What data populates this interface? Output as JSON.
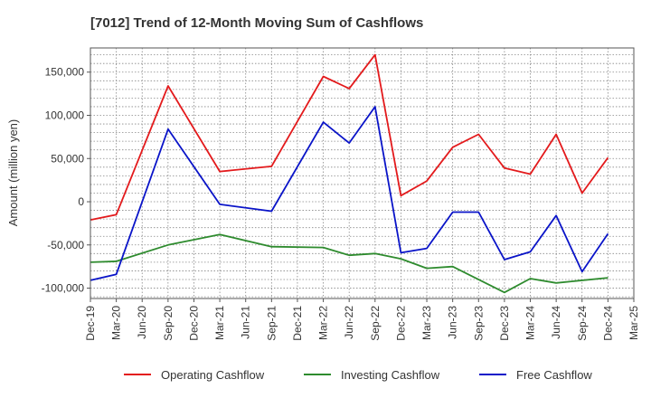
{
  "chart_data": {
    "type": "line",
    "title": "[7012]  Trend of 12-Month Moving Sum of Cashflows",
    "xlabel": "",
    "ylabel": "Amount (million yen)",
    "categories": [
      "Dec-19",
      "Mar-20",
      "Jun-20",
      "Sep-20",
      "Dec-20",
      "Mar-21",
      "Jun-21",
      "Sep-21",
      "Dec-21",
      "Mar-22",
      "Jun-22",
      "Sep-22",
      "Dec-22",
      "Mar-23",
      "Jun-23",
      "Sep-23",
      "Dec-23",
      "Mar-24",
      "Jun-24",
      "Sep-24",
      "Dec-24",
      "Mar-25"
    ],
    "ylim": [
      -112000,
      178000
    ],
    "yticks": [
      -100000,
      -50000,
      0,
      50000,
      100000,
      150000
    ],
    "ytick_labels": [
      "-100,000",
      "-50,000",
      "0",
      "50,000",
      "100,000",
      "150,000"
    ],
    "grid": true,
    "legend_position": "bottom",
    "series": [
      {
        "name": "Operating Cashflow",
        "color": "#e31a1c",
        "values": [
          -21000,
          -15000,
          null,
          134000,
          null,
          35000,
          null,
          41000,
          null,
          145000,
          131000,
          170000,
          7000,
          24000,
          63000,
          78000,
          39000,
          32000,
          78000,
          10000,
          51000,
          null
        ]
      },
      {
        "name": "Investing Cashflow",
        "color": "#2e8b2e",
        "values": [
          -70000,
          -69000,
          null,
          -50000,
          null,
          -38000,
          null,
          -52000,
          null,
          -53000,
          -62000,
          -60000,
          -66000,
          -77000,
          -75000,
          null,
          -105000,
          -89000,
          -94000,
          null,
          -88000,
          null
        ]
      },
      {
        "name": "Free Cashflow",
        "color": "#0a14c8",
        "values": [
          -91000,
          -84000,
          null,
          84000,
          null,
          -3000,
          null,
          -11000,
          null,
          92000,
          68000,
          110000,
          -59000,
          -54000,
          -12000,
          -12000,
          -67000,
          -58000,
          -16000,
          -81000,
          -37000,
          null
        ]
      }
    ]
  }
}
